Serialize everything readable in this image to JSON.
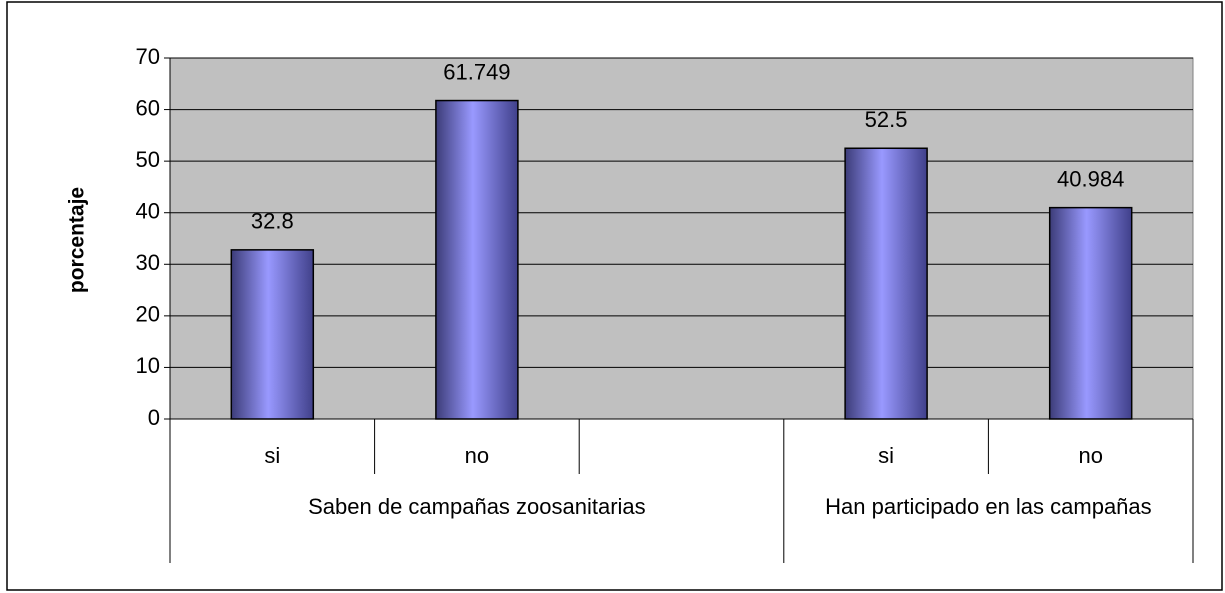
{
  "chart_data": {
    "type": "bar",
    "y_axis_label": "porcentaje",
    "categories": [
      "si",
      "no",
      null,
      "si",
      "no"
    ],
    "category_groups": [
      {
        "label": "Saben de campañas zoosanitarias",
        "size": 3
      },
      {
        "label": "Han participado en las campañas",
        "size": 2
      }
    ],
    "values": [
      32.8,
      61.749,
      null,
      52.5,
      40.984
    ],
    "color": "#9999ff",
    "ylim": [
      0,
      70
    ],
    "yticks": [
      0,
      10,
      20,
      30,
      40,
      50,
      60,
      70
    ],
    "grid": true
  }
}
